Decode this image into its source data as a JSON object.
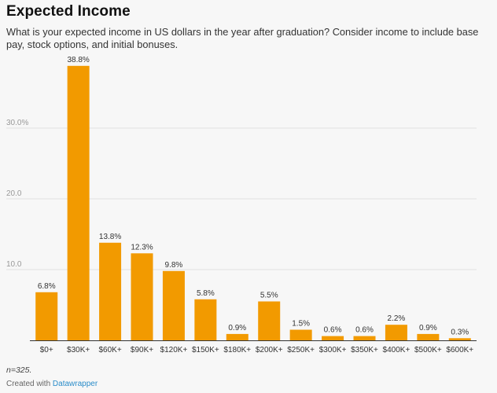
{
  "header": {
    "title": "Expected Income",
    "subtitle": "What is your expected income in US dollars in the year after graduation? Consider income to include base pay, stock options, and initial bonuses."
  },
  "footer": {
    "note": "n=325.",
    "credit_prefix": "Created with",
    "credit_link": "Datawrapper"
  },
  "colors": {
    "bar": "#f29a00",
    "grid": "#e2e2e2",
    "axis": "#333333",
    "tick_label": "#999999"
  },
  "chart_data": {
    "type": "bar",
    "title": "Expected Income",
    "xlabel": "",
    "ylabel": "",
    "categories": [
      "$0+",
      "$30K+",
      "$60K+",
      "$90K+",
      "$120K+",
      "$150K+",
      "$180K+",
      "$200K+",
      "$250K+",
      "$300K+",
      "$350K+",
      "$400K+",
      "$500K+",
      "$600K+"
    ],
    "values": [
      6.8,
      38.8,
      13.8,
      12.3,
      9.8,
      5.8,
      0.9,
      5.5,
      1.5,
      0.6,
      0.6,
      2.2,
      0.9,
      0.3
    ],
    "value_labels": [
      "6.8%",
      "38.8%",
      "13.8%",
      "12.3%",
      "9.8%",
      "5.8%",
      "0.9%",
      "5.5%",
      "1.5%",
      "0.6%",
      "0.6%",
      "2.2%",
      "0.9%",
      "0.3%"
    ],
    "y_ticks": [
      10,
      20,
      30
    ],
    "y_tick_labels": [
      "10.0",
      "20.0",
      "30.0%"
    ],
    "ylim": [
      0,
      40
    ],
    "grid": true,
    "legend": "none"
  }
}
